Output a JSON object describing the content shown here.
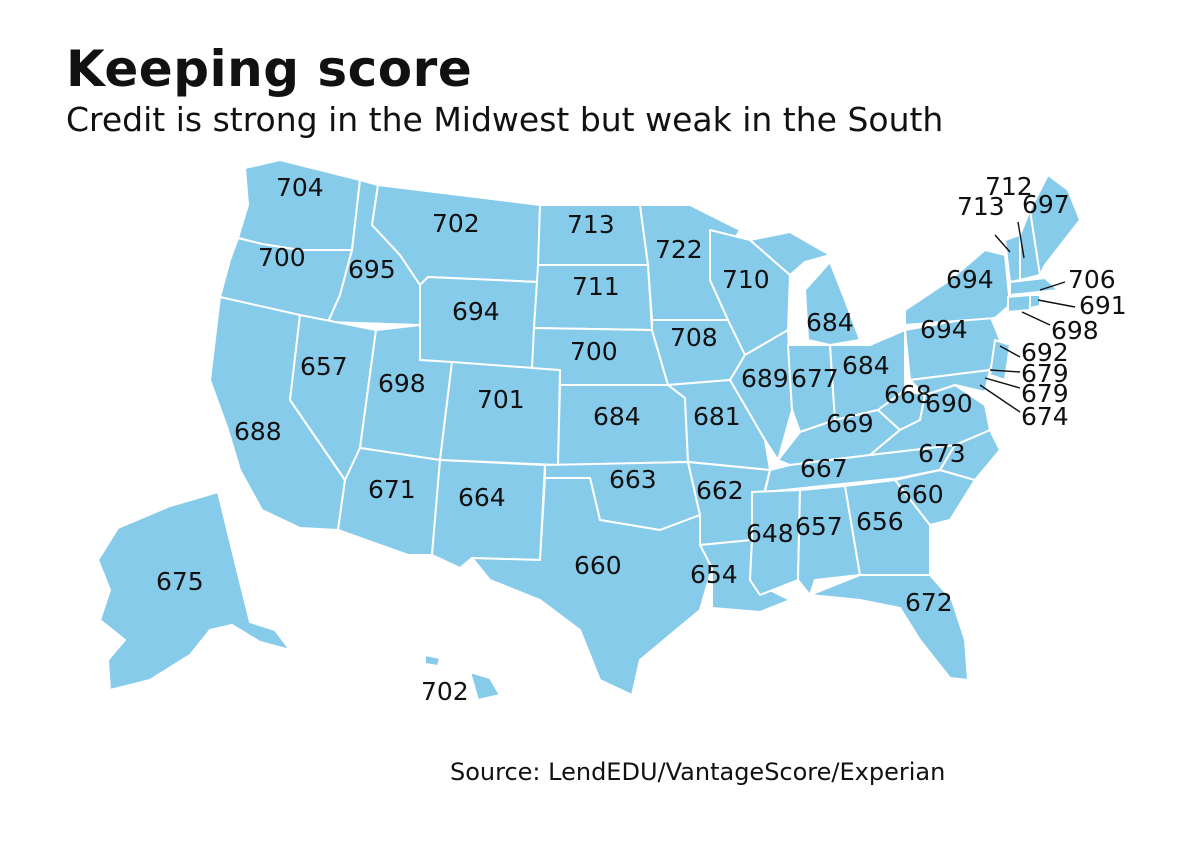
{
  "header": {
    "title": "Keeping score",
    "subtitle": "Credit is strong in the Midwest but weak in the South"
  },
  "footer": {
    "source": "Source: LendEDU/VantageScore/Experian"
  },
  "colors": {
    "land": "#87cbeb",
    "border": "#ffffff",
    "text": "#111111"
  },
  "state_scores": [
    {
      "state": "WA",
      "score": "704"
    },
    {
      "state": "OR",
      "score": "700"
    },
    {
      "state": "ID",
      "score": "695"
    },
    {
      "state": "MT",
      "score": "702"
    },
    {
      "state": "ND",
      "score": "713"
    },
    {
      "state": "MN",
      "score": "722"
    },
    {
      "state": "WI",
      "score": "710"
    },
    {
      "state": "SD",
      "score": "711"
    },
    {
      "state": "WY",
      "score": "694"
    },
    {
      "state": "NE",
      "score": "700"
    },
    {
      "state": "IA",
      "score": "708"
    },
    {
      "state": "MI",
      "score": "684"
    },
    {
      "state": "NV",
      "score": "657"
    },
    {
      "state": "UT",
      "score": "698"
    },
    {
      "state": "CO",
      "score": "701"
    },
    {
      "state": "CA",
      "score": "688"
    },
    {
      "state": "KS",
      "score": "684"
    },
    {
      "state": "MO",
      "score": "681"
    },
    {
      "state": "IL",
      "score": "689"
    },
    {
      "state": "IN",
      "score": "677"
    },
    {
      "state": "OH",
      "score": "684"
    },
    {
      "state": "PA",
      "score": "694"
    },
    {
      "state": "NY",
      "score": "694"
    },
    {
      "state": "AZ",
      "score": "671"
    },
    {
      "state": "NM",
      "score": "664"
    },
    {
      "state": "OK",
      "score": "663"
    },
    {
      "state": "AR",
      "score": "662"
    },
    {
      "state": "TN",
      "score": "667"
    },
    {
      "state": "KY",
      "score": "669"
    },
    {
      "state": "WV",
      "score": "668"
    },
    {
      "state": "VA",
      "score": "690"
    },
    {
      "state": "NC",
      "score": "673"
    },
    {
      "state": "SC",
      "score": "660"
    },
    {
      "state": "GA",
      "score": "656"
    },
    {
      "state": "AL",
      "score": "657"
    },
    {
      "state": "MS",
      "score": "648"
    },
    {
      "state": "LA",
      "score": "654"
    },
    {
      "state": "TX",
      "score": "660"
    },
    {
      "state": "FL",
      "score": "672"
    },
    {
      "state": "AK",
      "score": "675"
    },
    {
      "state": "HI",
      "score": "702"
    },
    {
      "state": "VT",
      "score": "713"
    },
    {
      "state": "NH",
      "score": "712"
    },
    {
      "state": "ME",
      "score": "697"
    },
    {
      "state": "MA",
      "score": "706"
    },
    {
      "state": "RI",
      "score": "691"
    },
    {
      "state": "CT",
      "score": "698"
    },
    {
      "state": "NJ",
      "score": "692"
    },
    {
      "state": "DE",
      "score": "679"
    },
    {
      "state": "MD",
      "score": "679"
    },
    {
      "state": "DC",
      "score": "674"
    }
  ]
}
